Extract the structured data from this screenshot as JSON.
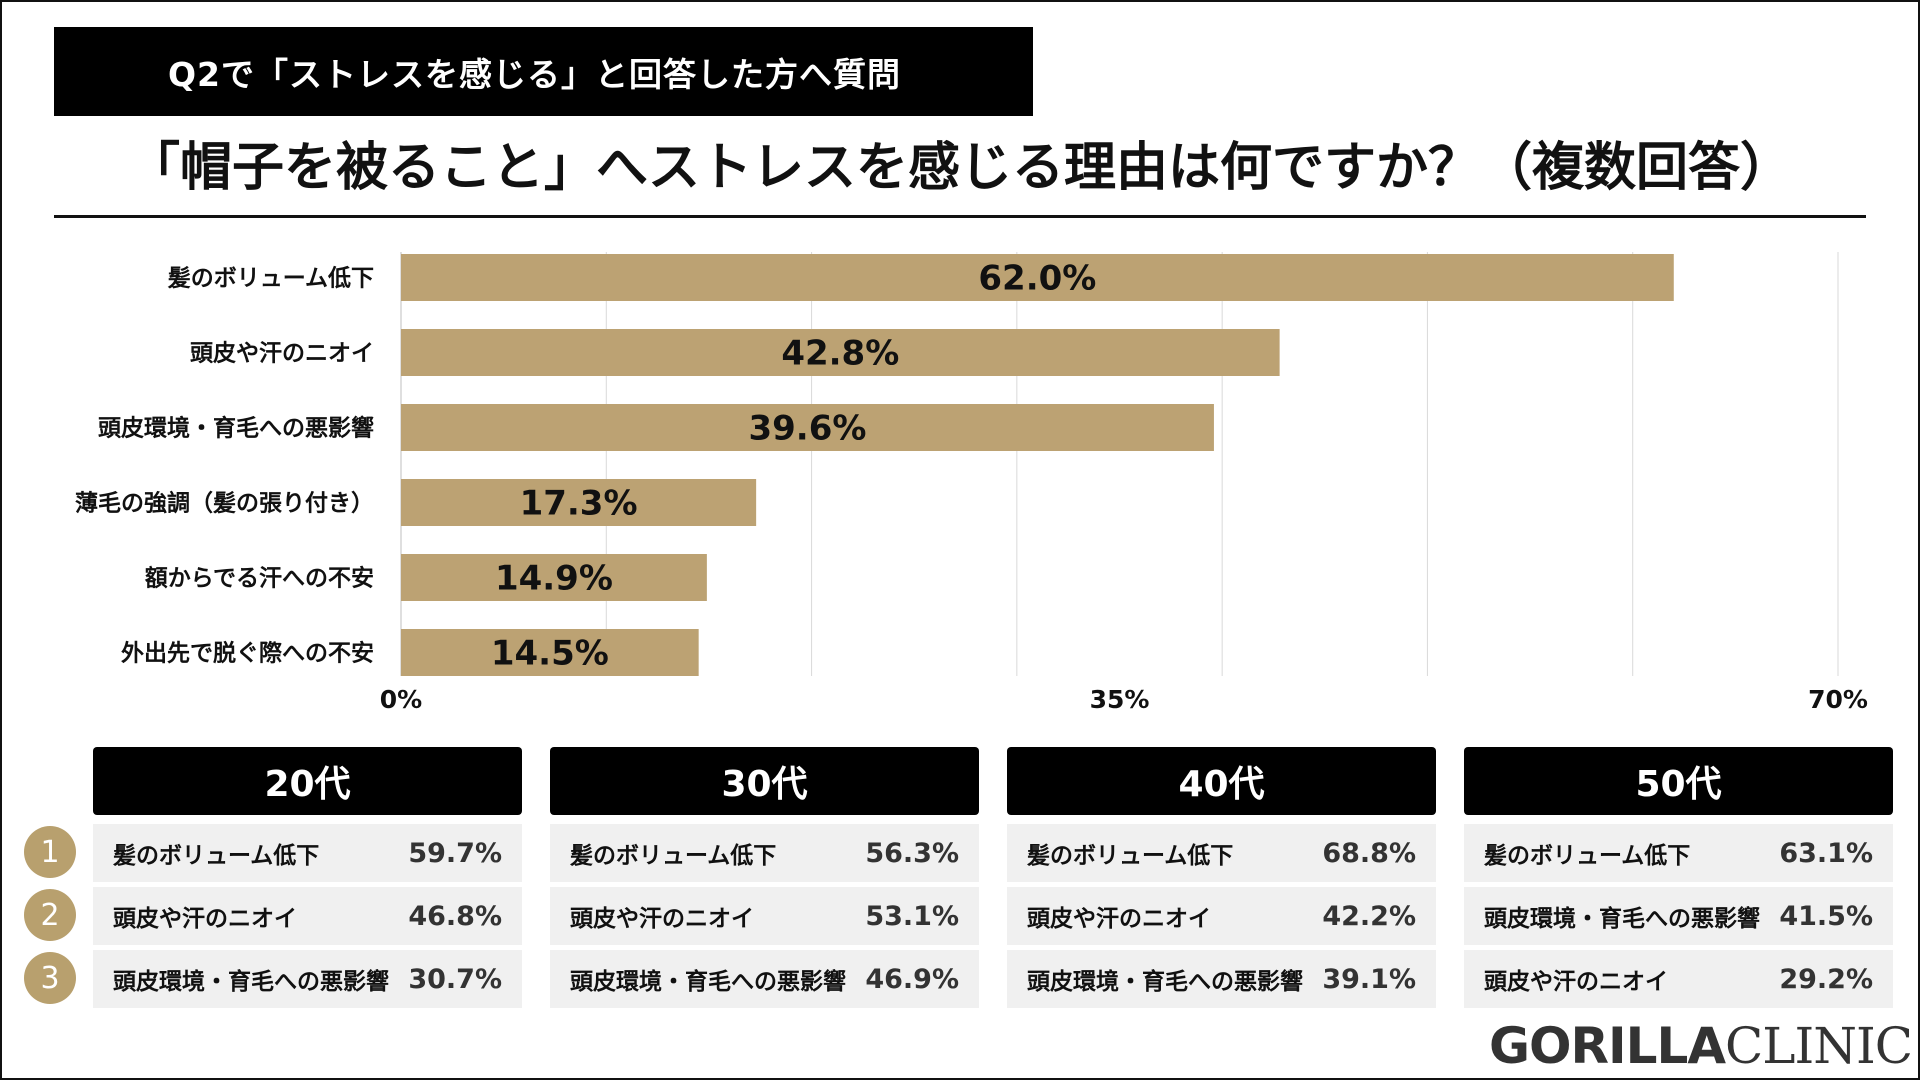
{
  "header": {
    "question_banner": "Q2で「ストレスを感じる」と回答した方へ質問",
    "title": "「帽子を被ること」へストレスを感じる理由は何ですか？（複数回答）"
  },
  "chart_data": {
    "type": "bar",
    "orientation": "horizontal",
    "categories": [
      "髪のボリューム低下",
      "頭皮や汗のニオイ",
      "頭皮環境・育毛への悪影響",
      "薄毛の強調（髪の張り付き）",
      "額からでる汗への不安",
      "外出先で脱ぐ際への不安"
    ],
    "values": [
      62.0,
      42.8,
      39.6,
      17.3,
      14.9,
      14.5
    ],
    "value_labels": [
      "62.0%",
      "42.8%",
      "39.6%",
      "17.3%",
      "14.9%",
      "14.5%"
    ],
    "xlim": [
      0,
      70
    ],
    "ticks": [
      0,
      35,
      70
    ],
    "tick_labels": [
      "0%",
      "35%",
      "70%"
    ],
    "grid_values": [
      10,
      20,
      30,
      40,
      50,
      60,
      70
    ],
    "grid": true,
    "bar_color": "#bca273"
  },
  "age_panels": [
    {
      "label": "20代",
      "ranks": [
        {
          "item": "髪のボリューム低下",
          "pct": "59.7%"
        },
        {
          "item": "頭皮や汗のニオイ",
          "pct": "46.8%"
        },
        {
          "item": "頭皮環境・育毛への悪影響",
          "pct": "30.7%"
        }
      ]
    },
    {
      "label": "30代",
      "ranks": [
        {
          "item": "髪のボリューム低下",
          "pct": "56.3%"
        },
        {
          "item": "頭皮や汗のニオイ",
          "pct": "53.1%"
        },
        {
          "item": "頭皮環境・育毛への悪影響",
          "pct": "46.9%"
        }
      ]
    },
    {
      "label": "40代",
      "ranks": [
        {
          "item": "髪のボリューム低下",
          "pct": "68.8%"
        },
        {
          "item": "頭皮や汗のニオイ",
          "pct": "42.2%"
        },
        {
          "item": "頭皮環境・育毛への悪影響",
          "pct": "39.1%"
        }
      ]
    },
    {
      "label": "50代",
      "ranks": [
        {
          "item": "髪のボリューム低下",
          "pct": "63.1%"
        },
        {
          "item": "頭皮環境・育毛への悪影響",
          "pct": "41.5%"
        },
        {
          "item": "頭皮や汗のニオイ",
          "pct": "29.2%"
        }
      ]
    }
  ],
  "rank_numbers": [
    "1",
    "2",
    "3"
  ],
  "brand": {
    "part1": "GORILLA",
    "part2": "CLINIC"
  },
  "colors": {
    "accent": "#bca273",
    "badge": "#b8a06e",
    "header_bg": "#000000",
    "row_bg": "#f0f0f0"
  }
}
